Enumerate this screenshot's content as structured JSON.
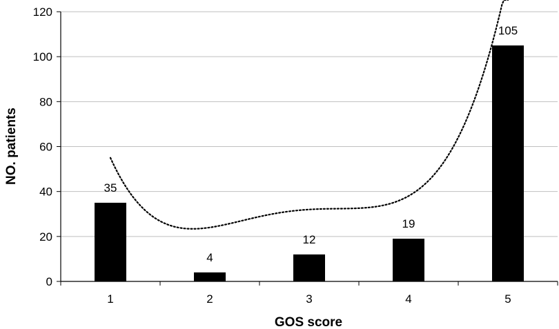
{
  "chart_data": {
    "type": "bar",
    "categories": [
      "1",
      "2",
      "3",
      "4",
      "5"
    ],
    "values": [
      35,
      4,
      12,
      19,
      105
    ],
    "data_labels": [
      "35",
      "4",
      "12",
      "19",
      "105"
    ],
    "xlabel": "GOS score",
    "ylabel": "NO. patients",
    "ylim": [
      0,
      120
    ],
    "yticks": [
      "0",
      "20",
      "40",
      "60",
      "80",
      "100",
      "120"
    ],
    "grid": true,
    "bar_color": "#000000",
    "grid_color": "#bfbfbf",
    "trendline": {
      "type": "polynomial",
      "style": "dotted",
      "color": "#000000",
      "values": [
        55,
        24,
        32,
        38,
        135
      ]
    }
  }
}
